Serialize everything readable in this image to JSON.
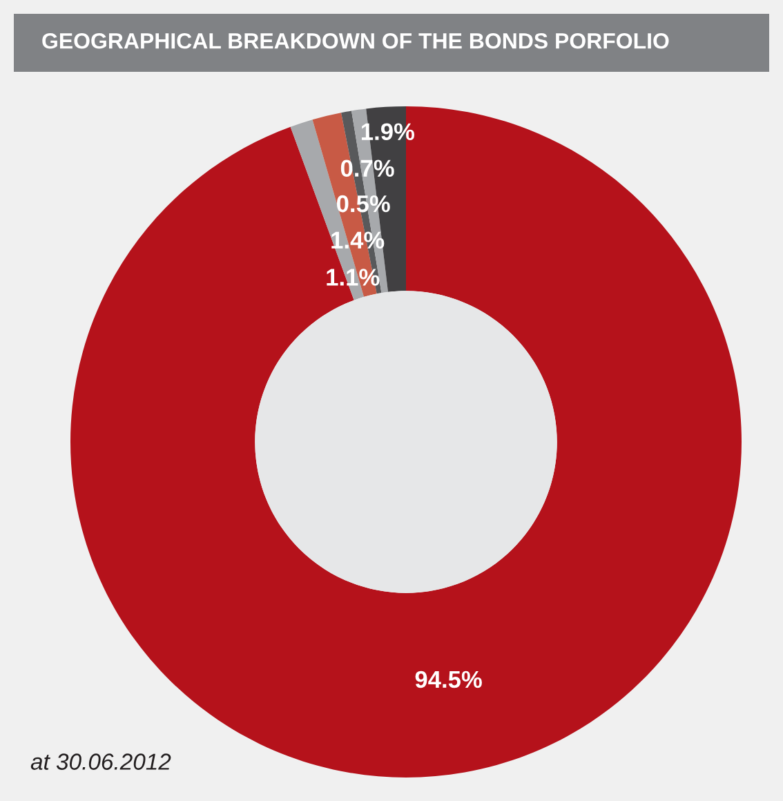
{
  "chart_data": {
    "type": "donut",
    "title": "GEOGRAPHICAL BREAKDOWN OF THE BONDS PORFOLIO",
    "categories": [
      null,
      null,
      null,
      null,
      null,
      null
    ],
    "values": [
      94.5,
      1.1,
      1.4,
      0.5,
      0.7,
      1.9
    ],
    "colors": [
      "#b5121b",
      "#a7a9ac",
      "#c85a45",
      "#58595b",
      "#a7a9ac",
      "#414042"
    ],
    "value_labels": [
      "94.5%",
      "1.1%",
      "1.4%",
      "0.5%",
      "0.7%",
      "1.9%"
    ],
    "annotations": [
      "at 30.06.2012"
    ],
    "legend": false
  }
}
